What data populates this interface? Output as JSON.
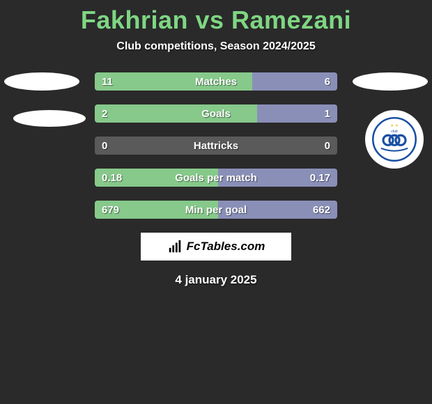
{
  "header": {
    "title": "Fakhrian vs Ramezani",
    "subtitle": "Club competitions, Season 2024/2025",
    "title_color": "#7fd683"
  },
  "colors": {
    "left_fill": "#86c98a",
    "right_fill": "#8a8fb8",
    "bar_bg": "#5a5a5a",
    "background": "#2a2a2a"
  },
  "bars": [
    {
      "metric": "Matches",
      "left_val": "11",
      "right_val": "6",
      "left_pct": 65,
      "right_pct": 35
    },
    {
      "metric": "Goals",
      "left_val": "2",
      "right_val": "1",
      "left_pct": 67,
      "right_pct": 33
    },
    {
      "metric": "Hattricks",
      "left_val": "0",
      "right_val": "0",
      "left_pct": 0,
      "right_pct": 0
    },
    {
      "metric": "Goals per match",
      "left_val": "0.18",
      "right_val": "0.17",
      "left_pct": 51,
      "right_pct": 49
    },
    {
      "metric": "Min per goal",
      "left_val": "679",
      "right_val": "662",
      "left_pct": 51,
      "right_pct": 49
    }
  ],
  "watermark": {
    "text": "FcTables.com"
  },
  "date": "4 january 2025",
  "badge": {
    "ring_color": "#1a4fa3",
    "accent_color": "#f2c94c"
  }
}
